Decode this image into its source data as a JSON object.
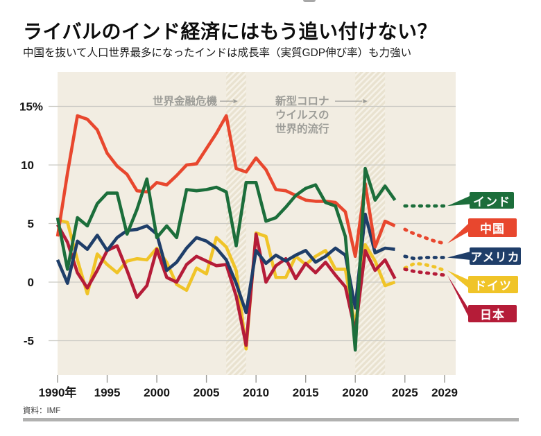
{
  "header": {
    "title": "ライバルのインド経済にはもう追い付けない？",
    "subtitle": "中国を抜いて人口世界最多になったインドは成長率（実質GDP伸び率）も力強い"
  },
  "footer": {
    "source": "資料：IMF"
  },
  "chart_data": {
    "type": "line",
    "title": "ライバルのインド経済にはもう追い付けない？",
    "subtitle": "中国を抜いて人口世界最多になったインドは成長率（実質GDP伸び率）も力強い",
    "unit": "%",
    "x_range": [
      1990,
      2029
    ],
    "ylim": [
      -7,
      16
    ],
    "grid": true,
    "forecast_from": 2025,
    "legend_position": "right-callouts",
    "source": "IMF",
    "colors": {
      "background_panel": "#f2ede2",
      "gridline": "#cbcac4",
      "band_base": "#e9e2d0",
      "band_stripe": "#f6f2e8",
      "annotation_text": "#9d9d98"
    },
    "yticks": [
      {
        "v": 15,
        "label": "15%"
      },
      {
        "v": 10,
        "label": "10"
      },
      {
        "v": 5,
        "label": "5"
      },
      {
        "v": 0,
        "label": "0"
      },
      {
        "v": -5,
        "label": "-5"
      }
    ],
    "xticks": [
      {
        "v": 1990,
        "label": "1990年"
      },
      {
        "v": 1995,
        "label": "1995"
      },
      {
        "v": 2000,
        "label": "2000"
      },
      {
        "v": 2005,
        "label": "2005"
      },
      {
        "v": 2010,
        "label": "2010"
      },
      {
        "v": 2015,
        "label": "2015"
      },
      {
        "v": 2020,
        "label": "2020"
      },
      {
        "v": 2025,
        "label": "2025"
      },
      {
        "v": 2029,
        "label": "2029"
      }
    ],
    "annotations": [
      {
        "label": "世界金融危機",
        "lines": [
          "世界金融危機"
        ],
        "band_years": [
          2007,
          2009
        ]
      },
      {
        "label": "新型コロナウイルスの世界的流行",
        "lines": [
          "新型コロナ",
          "ウイルスの",
          "世界的流行"
        ],
        "band_years": [
          2020,
          2023
        ]
      }
    ],
    "x": [
      1990,
      1991,
      1992,
      1993,
      1994,
      1995,
      1996,
      1997,
      1998,
      1999,
      2000,
      2001,
      2002,
      2003,
      2004,
      2005,
      2006,
      2007,
      2008,
      2009,
      2010,
      2011,
      2012,
      2013,
      2014,
      2015,
      2016,
      2017,
      2018,
      2019,
      2020,
      2021,
      2022,
      2023,
      2024,
      2025,
      2026,
      2027,
      2028,
      2029
    ],
    "series": [
      {
        "key": "india",
        "name": "インド",
        "color": "#1c6e3b",
        "values": [
          5.5,
          1.1,
          5.5,
          4.8,
          6.7,
          7.6,
          7.6,
          4.1,
          6.2,
          8.8,
          3.8,
          4.8,
          3.8,
          7.9,
          7.8,
          7.9,
          8.1,
          7.7,
          3.1,
          8.5,
          8.5,
          5.2,
          5.5,
          6.4,
          7.4,
          8.0,
          8.3,
          6.8,
          6.5,
          3.9,
          -5.8,
          9.7,
          7.0,
          8.2,
          7.0,
          6.5,
          6.5,
          6.5,
          6.5,
          6.5
        ]
      },
      {
        "key": "china",
        "name": "中国",
        "color": "#e8472e",
        "values": [
          3.9,
          9.3,
          14.2,
          13.9,
          13.0,
          11.0,
          9.9,
          9.2,
          7.8,
          7.7,
          8.5,
          8.3,
          9.1,
          10.0,
          10.1,
          11.4,
          12.7,
          14.2,
          9.7,
          9.4,
          10.6,
          9.6,
          7.9,
          7.8,
          7.4,
          7.0,
          6.9,
          6.9,
          6.8,
          6.0,
          2.2,
          8.4,
          3.0,
          5.2,
          4.8,
          4.5,
          4.1,
          3.8,
          3.5,
          3.3
        ]
      },
      {
        "key": "usa",
        "name": "アメリカ",
        "color": "#1f3e69",
        "values": [
          1.9,
          -0.1,
          3.5,
          2.8,
          4.0,
          2.7,
          3.8,
          4.4,
          4.5,
          4.8,
          4.1,
          1.0,
          1.7,
          2.9,
          3.8,
          3.5,
          2.9,
          1.9,
          -0.1,
          -2.6,
          2.7,
          1.6,
          2.3,
          1.8,
          2.3,
          2.7,
          1.7,
          2.2,
          2.9,
          2.3,
          -2.2,
          5.8,
          2.5,
          2.9,
          2.8,
          2.2,
          2.0,
          2.1,
          2.1,
          2.1
        ]
      },
      {
        "key": "germany",
        "name": "ドイツ",
        "color": "#f0c428",
        "values": [
          5.3,
          5.1,
          1.9,
          -1.0,
          2.4,
          1.5,
          0.8,
          1.8,
          2.0,
          1.9,
          2.9,
          1.7,
          -0.2,
          -0.7,
          1.2,
          0.7,
          3.8,
          3.0,
          1.0,
          -5.7,
          4.2,
          3.9,
          0.4,
          0.4,
          2.2,
          1.5,
          2.2,
          2.7,
          1.1,
          1.1,
          -3.8,
          3.2,
          1.8,
          -0.3,
          0.0,
          1.2,
          1.6,
          1.5,
          1.3,
          1.0
        ]
      },
      {
        "key": "japan",
        "name": "日本",
        "color": "#b51c38",
        "values": [
          4.9,
          3.4,
          0.8,
          -0.5,
          1.0,
          2.7,
          3.1,
          1.0,
          -1.3,
          -0.3,
          2.8,
          0.4,
          0.0,
          1.5,
          2.2,
          1.8,
          1.4,
          1.5,
          -1.2,
          -5.4,
          4.1,
          0.0,
          1.4,
          2.0,
          0.3,
          1.6,
          0.8,
          1.7,
          0.6,
          -0.4,
          -4.2,
          2.7,
          1.0,
          1.9,
          0.3,
          1.1,
          0.9,
          0.8,
          0.7,
          0.6
        ]
      }
    ]
  }
}
